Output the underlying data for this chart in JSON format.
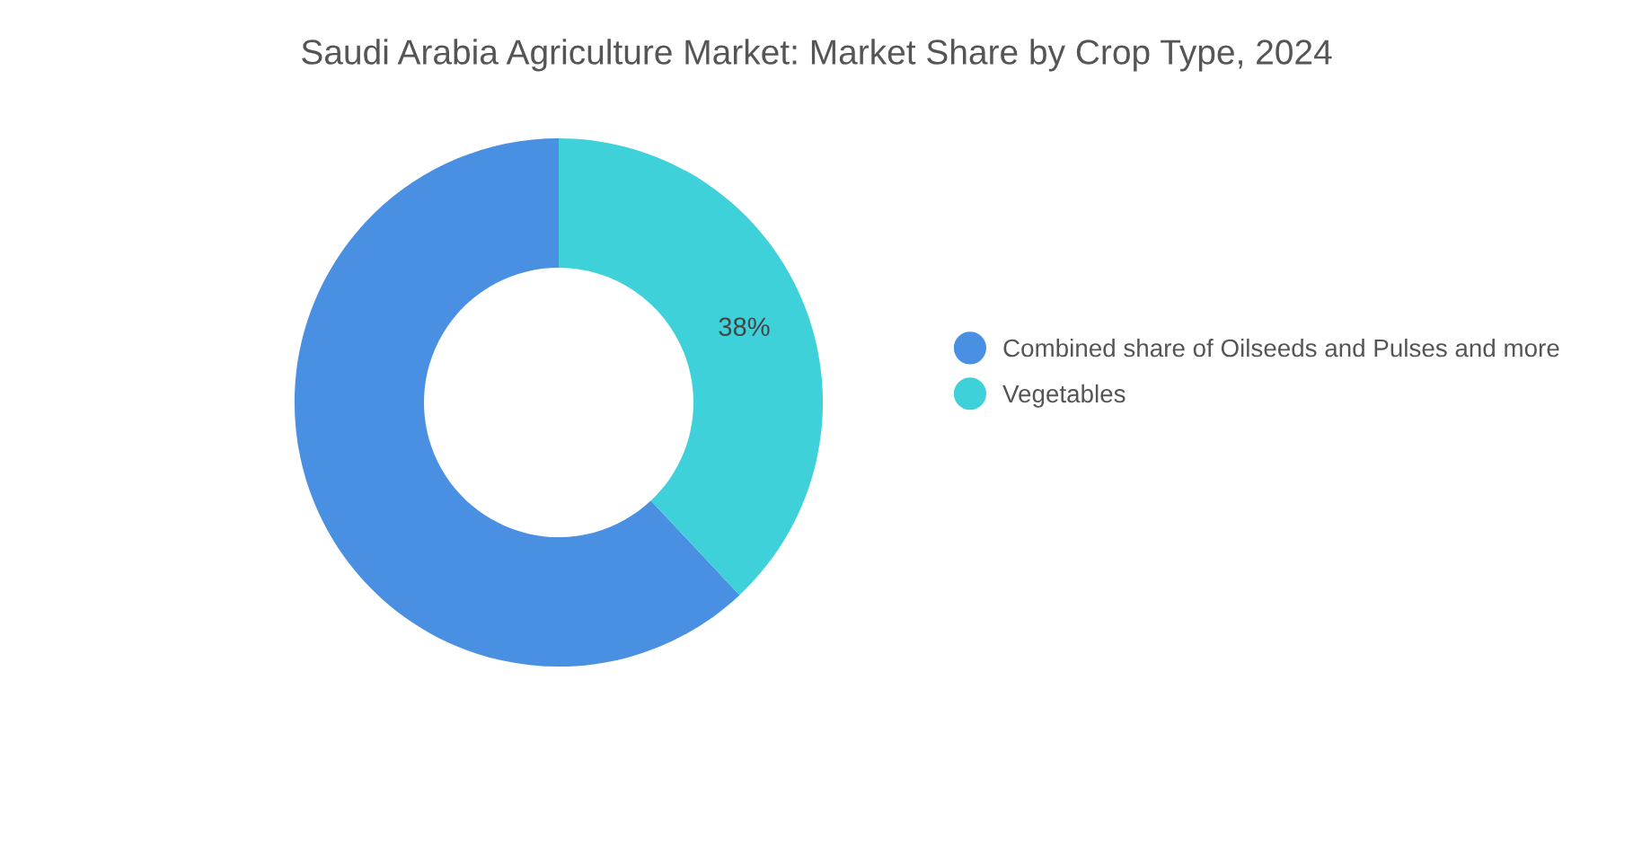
{
  "chart_data": {
    "type": "donut",
    "title": "Saudi Arabia Agriculture Market: Market Share by Crop Type, 2024",
    "categories": [
      "Combined share of Oilseeds and Pulses and more",
      "Vegetables"
    ],
    "values": [
      62,
      38
    ],
    "colors": [
      "#4a90e2",
      "#3fd1d9"
    ],
    "value_labels": [
      null,
      "38%"
    ],
    "legend": "right"
  }
}
